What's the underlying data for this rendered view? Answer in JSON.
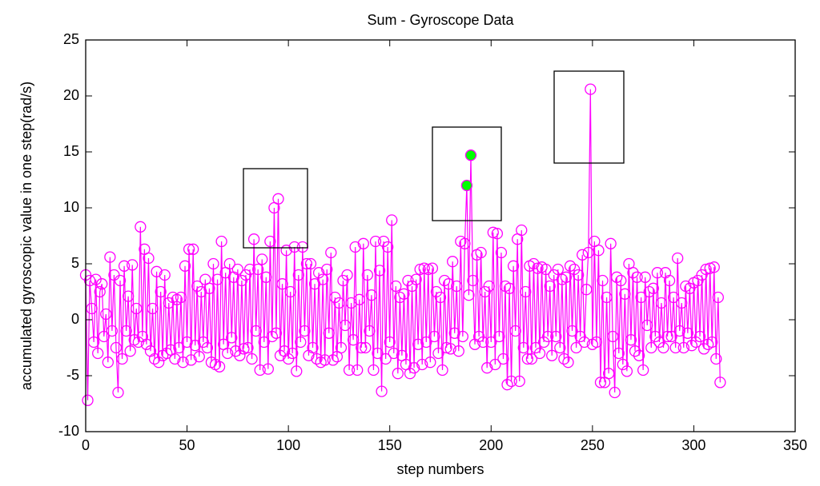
{
  "chart_data": {
    "type": "line",
    "title": "Sum - Gyroscope Data",
    "x_label": "step numbers",
    "y_label": "accumulated gyroscopic value in one step(rad/s)",
    "xlim": [
      0,
      350
    ],
    "xticks": [
      0,
      50,
      100,
      150,
      200,
      250,
      300,
      350
    ],
    "ylim": [
      -10,
      25
    ],
    "yticks": [
      -10,
      -5,
      0,
      5,
      10,
      15,
      20,
      25
    ],
    "highlight_color": "#00ff00",
    "highlighted": [
      188,
      190
    ],
    "series": [
      {
        "color": "#ff00ff",
        "x": [
          0,
          1,
          2,
          3,
          4,
          5,
          6,
          7,
          8,
          9,
          10,
          11,
          12,
          13,
          14,
          15,
          16,
          17,
          18,
          19,
          20,
          21,
          22,
          23,
          24,
          25,
          26,
          27,
          28,
          29,
          30,
          31,
          32,
          33,
          34,
          35,
          36,
          37,
          38,
          39,
          40,
          41,
          42,
          43,
          44,
          45,
          46,
          47,
          48,
          49,
          50,
          51,
          52,
          53,
          54,
          55,
          56,
          57,
          58,
          59,
          60,
          61,
          62,
          63,
          64,
          65,
          66,
          67,
          68,
          69,
          70,
          71,
          72,
          73,
          74,
          75,
          76,
          77,
          78,
          79,
          80,
          81,
          82,
          83,
          84,
          85,
          86,
          87,
          88,
          89,
          90,
          91,
          92,
          93,
          94,
          95,
          96,
          97,
          98,
          99,
          100,
          101,
          102,
          103,
          104,
          105,
          106,
          107,
          108,
          109,
          110,
          111,
          112,
          113,
          114,
          115,
          116,
          117,
          118,
          119,
          120,
          121,
          122,
          123,
          124,
          125,
          126,
          127,
          128,
          129,
          130,
          131,
          132,
          133,
          134,
          135,
          136,
          137,
          138,
          139,
          140,
          141,
          142,
          143,
          144,
          145,
          146,
          147,
          148,
          149,
          150,
          151,
          152,
          153,
          154,
          155,
          156,
          157,
          158,
          159,
          160,
          161,
          162,
          163,
          164,
          165,
          166,
          167,
          168,
          169,
          170,
          171,
          172,
          173,
          174,
          175,
          176,
          177,
          178,
          179,
          180,
          181,
          182,
          183,
          184,
          185,
          186,
          187,
          188,
          189,
          190,
          191,
          192,
          193,
          194,
          195,
          196,
          197,
          198,
          199,
          200,
          201,
          202,
          203,
          204,
          205,
          206,
          207,
          208,
          209,
          210,
          211,
          212,
          213,
          214,
          215,
          216,
          217,
          218,
          219,
          220,
          221,
          222,
          223,
          224,
          225,
          226,
          227,
          228,
          229,
          230,
          231,
          232,
          233,
          234,
          235,
          236,
          237,
          238,
          239,
          240,
          241,
          242,
          243,
          244,
          245,
          246,
          247,
          248,
          249,
          250,
          251,
          252,
          253,
          254,
          255,
          256,
          257,
          258,
          259,
          260,
          261,
          262,
          263,
          264,
          265,
          266,
          267,
          268,
          269,
          270,
          271,
          272,
          273,
          274,
          275,
          276,
          277,
          278,
          279,
          280,
          281,
          282,
          283,
          284,
          285,
          286,
          287,
          288,
          289,
          290,
          291,
          292,
          293,
          294,
          295,
          296,
          297,
          298,
          299,
          300,
          301,
          302,
          303,
          304,
          305,
          306,
          307,
          308,
          309,
          310,
          311,
          312,
          313
        ],
        "values": [
          4,
          -7.2,
          3.5,
          1,
          -2,
          3.6,
          -3,
          2.5,
          3.2,
          -1.5,
          0.5,
          -3.8,
          5.6,
          -1,
          4,
          -2.5,
          -6.5,
          3.5,
          -3.5,
          4.8,
          -1,
          2.1,
          -2.8,
          4.9,
          -1.8,
          1,
          -2,
          8.3,
          -1.5,
          6.3,
          -2.2,
          5.5,
          -2.8,
          1,
          -3.5,
          4.3,
          -3.8,
          2.5,
          -3.2,
          4,
          -3,
          1.5,
          -2.7,
          2,
          -3.5,
          1.8,
          -2.5,
          2,
          -3.8,
          4.8,
          -2,
          6.3,
          -3.6,
          6.3,
          -2.3,
          3,
          -3.3,
          2.5,
          -2,
          3.6,
          -2.5,
          2.8,
          -3.8,
          5,
          -4,
          3.6,
          -4.2,
          7,
          -2.2,
          4.2,
          -3,
          5,
          -1.6,
          3.8,
          -2.8,
          4.5,
          -3.2,
          3.5,
          -2.6,
          4,
          -2.5,
          4.5,
          -3.5,
          7.2,
          -1,
          4.5,
          -4.5,
          5.4,
          -2,
          3.8,
          -4.4,
          7,
          -1.5,
          10,
          -1.2,
          10.8,
          -3.2,
          3.2,
          -2.8,
          6.2,
          -3.5,
          2.5,
          -3,
          6.5,
          -4.6,
          4,
          -2,
          6.5,
          -1,
          5,
          -3.2,
          5,
          -2.5,
          3.2,
          -3.5,
          4.2,
          -3.8,
          3.6,
          -3.6,
          4.5,
          -1.2,
          6,
          -3.6,
          2,
          -3.3,
          1.5,
          -2.5,
          3.5,
          -0.5,
          4,
          -4.5,
          1.5,
          -1.8,
          6.5,
          -4.5,
          1.8,
          -2.5,
          6.8,
          -2.5,
          4,
          -1,
          2.2,
          -4.5,
          7,
          -3,
          4.4,
          -6.4,
          7,
          -3.5,
          6.5,
          -2,
          8.9,
          -3,
          3,
          -4.8,
          2,
          -3.2,
          2.3,
          -4,
          3.5,
          -4.8,
          3,
          -4.3,
          3.6,
          -2.2,
          4.5,
          -4,
          4.6,
          -2,
          4.5,
          -3.8,
          4.6,
          -1.5,
          2.5,
          -3,
          2,
          -4.5,
          3.5,
          -2.5,
          3.2,
          -2.6,
          5.2,
          -1.2,
          3,
          -2.8,
          7,
          -1.5,
          6.8,
          12,
          2.2,
          14.7,
          3.5,
          -2.2,
          5.8,
          -1.5,
          6,
          -2,
          2.5,
          -4.3,
          3,
          -2,
          7.8,
          -4,
          7.7,
          -1.5,
          6,
          -3.5,
          3,
          -5.8,
          2.8,
          -5.5,
          4.8,
          -1,
          7.2,
          -5.5,
          8,
          -2.5,
          2.5,
          -3.5,
          4.8,
          -3.5,
          5,
          -2.5,
          4.6,
          -3,
          4.7,
          -2,
          4.5,
          -1.5,
          3,
          -3.2,
          4,
          -1.5,
          4.5,
          -2.5,
          3.6,
          -3.5,
          3.8,
          -3.8,
          4.8,
          -1,
          4.5,
          -2.5,
          4,
          -1.5,
          5.8,
          -2,
          2.7,
          6,
          20.6,
          -2.2,
          7,
          -2,
          6.2,
          -5.6,
          3.5,
          -5.6,
          2,
          -4.8,
          6.8,
          -1.5,
          -6.5,
          3.8,
          -3,
          3.5,
          -4,
          2.3,
          -4.6,
          5,
          -1.8,
          4.2,
          -2.8,
          3.8,
          -3.2,
          2,
          -4.5,
          3.8,
          -0.5,
          2.5,
          -2.5,
          2.8,
          -1.5,
          4.2,
          -2,
          1.5,
          -2.5,
          4.2,
          -1.5,
          3.5,
          -1.5,
          2,
          -2.5,
          5.5,
          -1,
          1.5,
          -2.5,
          3,
          -1.2,
          2.8,
          -2.3,
          3.3,
          -2,
          3.5,
          -1.5,
          4,
          -2.6,
          4.5,
          -2.2,
          4.6,
          -2,
          4.7,
          -3.5,
          2,
          -5.6
        ]
      }
    ]
  }
}
